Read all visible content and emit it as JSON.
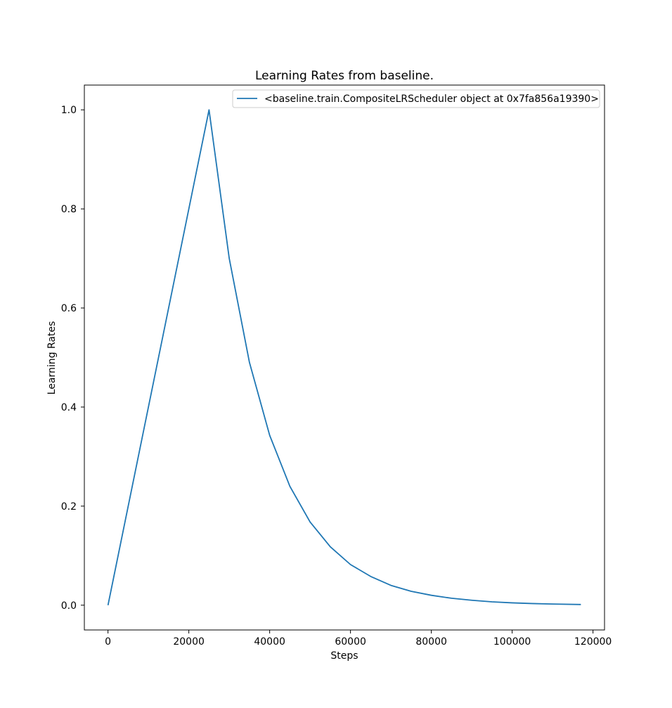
{
  "chart_data": {
    "type": "line",
    "title": "Learning Rates from baseline.",
    "xlabel": "Steps",
    "ylabel": "Learning Rates",
    "xlim": [
      -5850,
      122850
    ],
    "ylim": [
      -0.05,
      1.05
    ],
    "xticks": [
      0,
      20000,
      40000,
      60000,
      80000,
      100000,
      120000
    ],
    "xtick_labels": [
      "0",
      "20000",
      "40000",
      "60000",
      "80000",
      "100000",
      "120000"
    ],
    "yticks": [
      0.0,
      0.2,
      0.4,
      0.6,
      0.8,
      1.0
    ],
    "ytick_labels": [
      "0.0",
      "0.2",
      "0.4",
      "0.6",
      "0.8",
      "1.0"
    ],
    "grid": false,
    "legend_position": "top-right",
    "series": [
      {
        "name": "<baseline.train.CompositeLRScheduler object at 0x7fa856a19390>",
        "color": "#1f77b4",
        "x": [
          0,
          25000,
          30000,
          35000,
          40000,
          45000,
          50000,
          55000,
          60000,
          65000,
          70000,
          75000,
          80000,
          85000,
          90000,
          95000,
          100000,
          105000,
          110000,
          117000
        ],
        "y": [
          0.0,
          1.0,
          0.7,
          0.49,
          0.343,
          0.24,
          0.168,
          0.118,
          0.082,
          0.058,
          0.04,
          0.028,
          0.02,
          0.014,
          0.01,
          0.0068,
          0.0047,
          0.0033,
          0.0023,
          0.0014
        ]
      }
    ]
  }
}
